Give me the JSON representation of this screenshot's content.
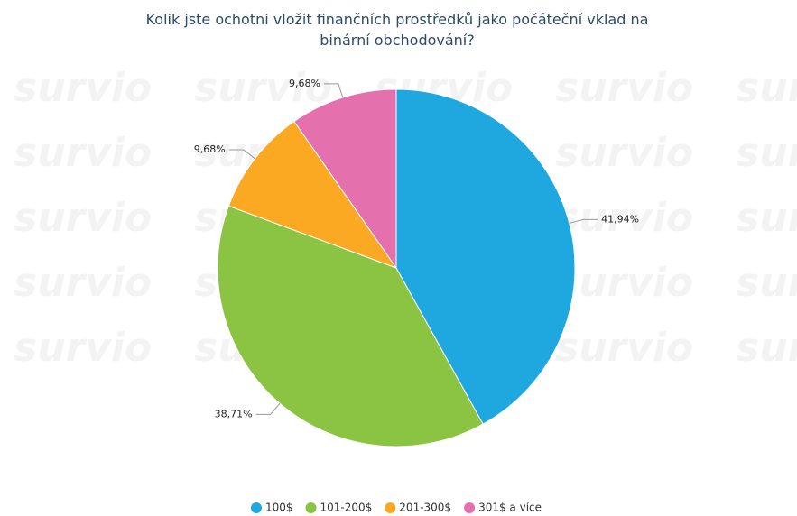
{
  "chart_data": {
    "type": "pie",
    "title": "Kolik jste ochotni vložit finančních prostředků jako počáteční vklad na binární obchodování?",
    "watermark": "survio",
    "categories": [
      "100$",
      "101-200$",
      "201-300$",
      "301$ a více"
    ],
    "values": [
      41.94,
      38.71,
      9.68,
      9.68
    ],
    "value_labels": [
      "41,94%",
      "38,71%",
      "9,68%",
      "9,68%"
    ],
    "colors": [
      "#1fa8e0",
      "#8bc443",
      "#fba823",
      "#e570ae"
    ],
    "legend": "bottom"
  }
}
